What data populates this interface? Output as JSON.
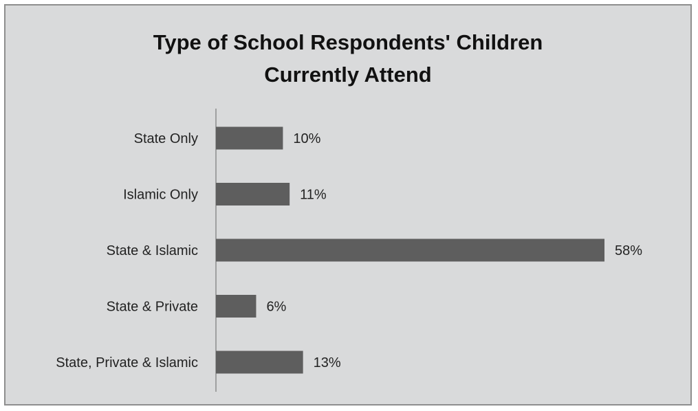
{
  "chart_data": {
    "type": "bar",
    "orientation": "horizontal",
    "title_lines": [
      "Type of School Respondents' Children",
      "Currently Attend"
    ],
    "categories": [
      "State Only",
      "Islamic Only",
      "State & Islamic",
      "State & Private",
      "State, Private & Islamic"
    ],
    "values": [
      10,
      11,
      58,
      6,
      13
    ],
    "value_labels": [
      "10%",
      "11%",
      "58%",
      "6%",
      "13%"
    ],
    "unit": "%",
    "xlim": [
      0,
      60
    ],
    "grid": false,
    "legend": "none",
    "colors": {
      "bar": "#5e5e5e",
      "background": "#d9dadb",
      "axis": "#8c8c8c",
      "border": "#8e8e8e"
    }
  }
}
